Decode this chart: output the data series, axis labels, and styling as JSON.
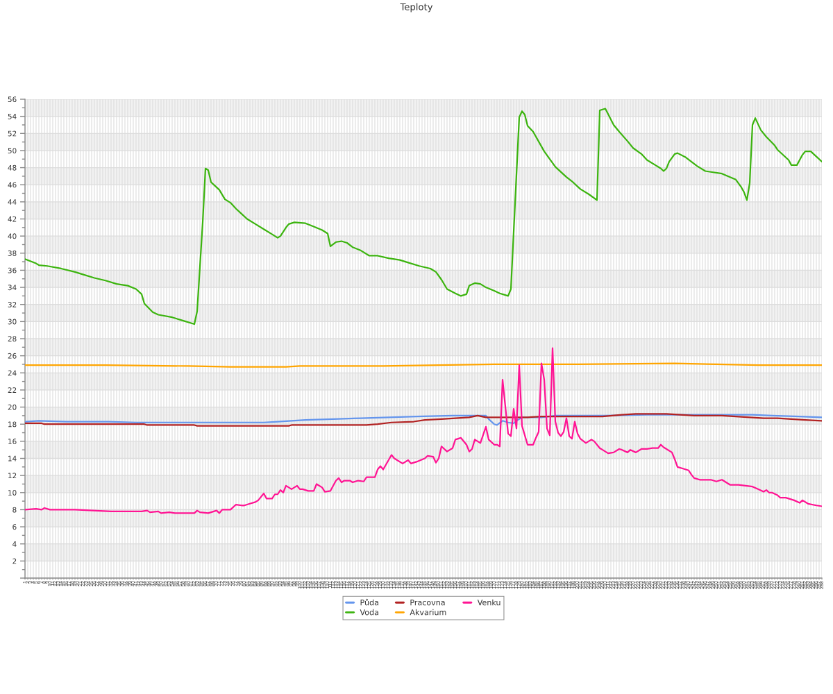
{
  "chart_data": {
    "type": "line",
    "title": "Teploty",
    "xlim": [
      1,
      288
    ],
    "xticks": [
      1,
      2,
      3,
      4,
      5,
      6,
      7,
      8,
      9,
      10,
      11,
      12,
      13,
      14,
      15,
      16,
      17,
      18,
      19,
      20,
      21,
      22,
      23,
      24,
      25,
      26,
      27,
      28,
      29,
      30,
      31,
      32,
      33,
      34,
      35,
      36,
      37,
      38,
      39,
      40,
      41,
      42,
      43,
      44,
      45,
      46,
      47,
      48,
      49,
      50,
      51,
      52,
      53,
      54,
      55,
      56,
      57,
      58,
      59,
      60,
      61,
      62,
      63,
      64,
      65,
      66,
      67,
      68,
      69,
      70,
      71,
      72,
      73,
      74,
      75,
      76,
      77,
      78,
      79,
      80,
      81,
      82,
      83,
      84,
      85,
      86,
      87,
      88,
      89,
      90,
      91,
      92,
      93,
      94,
      95,
      96,
      97,
      98,
      99,
      100,
      101,
      102,
      103,
      104,
      105,
      106,
      107,
      108,
      109,
      110,
      111,
      112,
      113,
      114,
      115,
      116,
      117,
      118,
      119,
      120,
      121,
      122,
      123,
      124,
      125,
      126,
      127,
      128,
      129,
      130,
      131,
      132,
      133,
      134,
      135,
      136,
      137,
      138,
      139,
      140,
      141,
      142,
      143,
      144,
      145,
      146,
      147,
      148,
      149,
      150,
      151,
      152,
      153,
      154,
      155,
      156,
      157,
      158,
      159,
      160,
      161,
      162,
      163,
      164,
      165,
      166,
      167,
      168,
      169,
      170,
      171,
      172,
      173,
      174,
      175,
      176,
      177,
      178,
      179,
      180,
      181,
      182,
      183,
      184,
      185,
      186,
      187,
      188,
      189,
      190,
      191,
      192,
      193,
      194,
      195,
      196,
      197,
      198,
      199,
      200,
      201,
      202,
      203,
      204,
      205,
      206,
      207,
      208,
      209,
      210,
      211,
      212,
      213,
      214,
      215,
      216,
      217,
      218,
      219,
      220,
      221,
      222,
      223,
      224,
      225,
      226,
      227,
      228,
      229,
      230,
      231,
      232,
      233,
      234,
      235,
      236,
      237,
      238,
      239,
      240,
      241,
      242,
      243,
      244,
      245,
      246,
      247,
      248,
      249,
      250,
      251,
      252,
      253,
      254,
      255,
      256,
      257,
      258,
      259,
      260,
      261,
      262,
      263,
      264,
      265,
      266,
      267,
      268,
      269,
      270,
      271,
      272,
      273,
      274,
      275,
      276,
      277,
      278,
      279,
      280,
      281,
      282,
      283,
      284,
      285,
      286,
      287,
      288
    ],
    "ylim": [
      0,
      56
    ],
    "yticks": [
      {
        "value": 0,
        "label": null
      },
      2,
      4,
      6,
      8,
      10,
      12,
      14,
      16,
      18,
      20,
      22,
      24,
      26,
      28,
      30,
      32,
      34,
      36,
      38,
      40,
      42,
      44,
      46,
      48,
      50,
      52,
      54,
      56
    ],
    "grid": true,
    "legend": "bottom",
    "series": [
      {
        "name": "Půda",
        "color": "#6495ed",
        "x": [
          1,
          6,
          16,
          31,
          41,
          66,
          87,
          92,
          102,
          112,
          122,
          132,
          142,
          155,
          160,
          167,
          168,
          170,
          171,
          173,
          175,
          177,
          178,
          180,
          187,
          192,
          210,
          225,
          250,
          263,
          270,
          280,
          288
        ],
        "values": [
          18.3,
          18.4,
          18.3,
          18.3,
          18.2,
          18.2,
          18.2,
          18.3,
          18.5,
          18.6,
          18.7,
          18.8,
          18.9,
          19.0,
          19.0,
          19.0,
          18.6,
          18.0,
          17.9,
          18.4,
          18.2,
          18.1,
          18.4,
          18.8,
          18.8,
          19.0,
          19.0,
          19.1,
          19.1,
          19.1,
          19.0,
          18.9,
          18.8
        ]
      },
      {
        "name": "Voda",
        "color": "#3cb40f",
        "x": [
          1,
          5,
          6,
          9,
          14,
          19,
          22,
          26,
          30,
          34,
          38,
          41,
          43,
          44,
          47,
          49,
          54,
          58,
          62,
          63,
          65,
          66,
          67,
          68,
          70,
          71,
          73,
          75,
          77,
          79,
          81,
          84,
          87,
          90,
          92,
          93,
          95,
          96,
          98,
          102,
          105,
          108,
          110,
          111,
          113,
          115,
          117,
          119,
          122,
          125,
          128,
          132,
          136,
          139,
          143,
          147,
          149,
          151,
          153,
          156,
          158,
          160,
          161,
          163,
          165,
          167,
          170,
          172,
          175,
          176,
          179,
          180,
          181,
          182,
          184,
          188,
          192,
          196,
          198,
          201,
          204,
          207,
          208,
          210,
          213,
          215,
          218,
          220,
          223,
          225,
          228,
          230,
          231,
          232,
          233,
          235,
          236,
          239,
          243,
          246,
          248,
          252,
          257,
          259,
          260,
          261,
          262,
          263,
          264,
          266,
          268,
          271,
          272,
          276,
          277,
          279,
          280,
          281,
          282,
          284,
          285,
          288
        ],
        "values": [
          37.3,
          36.8,
          36.6,
          36.5,
          36.2,
          35.8,
          35.5,
          35.1,
          34.8,
          34.4,
          34.2,
          33.8,
          33.2,
          32.1,
          31.1,
          30.8,
          30.5,
          30.1,
          29.7,
          31.2,
          41.6,
          47.9,
          47.7,
          46.3,
          45.7,
          45.4,
          44.3,
          43.9,
          43.2,
          42.6,
          42.0,
          41.4,
          40.8,
          40.2,
          39.8,
          40.0,
          41.0,
          41.4,
          41.6,
          41.5,
          41.1,
          40.7,
          40.3,
          38.8,
          39.3,
          39.4,
          39.2,
          38.7,
          38.3,
          37.7,
          37.7,
          37.4,
          37.2,
          36.9,
          36.5,
          36.2,
          35.8,
          34.9,
          33.8,
          33.3,
          33.0,
          33.2,
          34.2,
          34.5,
          34.4,
          34.0,
          33.6,
          33.3,
          33.0,
          33.8,
          53.9,
          54.6,
          54.2,
          52.9,
          52.2,
          49.9,
          48.1,
          46.9,
          46.4,
          45.5,
          44.9,
          44.2,
          54.7,
          54.9,
          53.0,
          52.2,
          51.1,
          50.3,
          49.6,
          48.9,
          48.3,
          47.9,
          47.6,
          47.9,
          48.7,
          49.6,
          49.7,
          49.2,
          48.2,
          47.6,
          47.5,
          47.3,
          46.6,
          45.7,
          45.1,
          44.2,
          46.2,
          53.0,
          53.8,
          52.4,
          51.6,
          50.6,
          50.1,
          48.9,
          48.3,
          48.3,
          48.9,
          49.5,
          49.9,
          49.9,
          49.6,
          48.7
        ]
      },
      {
        "name": "Pracovna",
        "color": "#b22222",
        "x": [
          1,
          7,
          8,
          44,
          45,
          62,
          63,
          96,
          97,
          124,
          128,
          133,
          141,
          145,
          151,
          156,
          161,
          164,
          167,
          177,
          182,
          187,
          209,
          216,
          221,
          232,
          237,
          242,
          252,
          257,
          262,
          267,
          272,
          277,
          282,
          288
        ],
        "values": [
          18.1,
          18.1,
          18.0,
          18.0,
          17.9,
          17.9,
          17.8,
          17.8,
          17.9,
          17.9,
          18.0,
          18.2,
          18.3,
          18.5,
          18.6,
          18.7,
          18.8,
          19.0,
          18.8,
          18.8,
          18.8,
          18.9,
          18.9,
          19.1,
          19.2,
          19.2,
          19.1,
          19.0,
          19.0,
          18.9,
          18.8,
          18.7,
          18.7,
          18.6,
          18.5,
          18.4
        ]
      },
      {
        "name": "Akvarium",
        "color": "#ffa500",
        "x": [
          1,
          30,
          60,
          75,
          95,
          100,
          130,
          150,
          170,
          200,
          235,
          250,
          265,
          288
        ],
        "values": [
          24.9,
          24.9,
          24.8,
          24.7,
          24.7,
          24.8,
          24.8,
          24.9,
          25.0,
          25.0,
          25.1,
          25.0,
          24.9,
          24.9
        ]
      },
      {
        "name": "Venku",
        "color": "#ff1493",
        "x": [
          1,
          5,
          7,
          8,
          10,
          19,
          32,
          43,
          45,
          46,
          49,
          50,
          53,
          55,
          62,
          63,
          64,
          67,
          70,
          71,
          72,
          75,
          77,
          79,
          80,
          82,
          84,
          85,
          87,
          88,
          90,
          91,
          92,
          93,
          94,
          95,
          97,
          99,
          100,
          101,
          103,
          105,
          106,
          108,
          109,
          111,
          113,
          114,
          115,
          116,
          118,
          119,
          121,
          123,
          124,
          127,
          128,
          129,
          130,
          133,
          134,
          137,
          139,
          140,
          142,
          145,
          146,
          148,
          149,
          150,
          151,
          153,
          155,
          156,
          158,
          160,
          161,
          162,
          163,
          165,
          167,
          168,
          170,
          171,
          172,
          173,
          175,
          176,
          177,
          178,
          179,
          180,
          182,
          184,
          185,
          186,
          187,
          188,
          189,
          190,
          191,
          192,
          193,
          194,
          195,
          196,
          197,
          198,
          199,
          200,
          201,
          203,
          205,
          206,
          208,
          209,
          211,
          213,
          215,
          216,
          218,
          219,
          221,
          223,
          225,
          227,
          229,
          230,
          231,
          234,
          235,
          236,
          238,
          240,
          241,
          242,
          244,
          248,
          250,
          252,
          253,
          255,
          258,
          263,
          265,
          267,
          268,
          269,
          270,
          272,
          273,
          275,
          278,
          280,
          281,
          283,
          286,
          288
        ],
        "values": [
          8.0,
          8.1,
          8.0,
          8.2,
          8.0,
          8.0,
          7.8,
          7.8,
          7.9,
          7.7,
          7.8,
          7.6,
          7.7,
          7.6,
          7.6,
          7.9,
          7.7,
          7.6,
          7.9,
          7.6,
          8.0,
          8.0,
          8.6,
          8.5,
          8.5,
          8.7,
          8.9,
          9.1,
          9.9,
          9.3,
          9.3,
          9.8,
          9.8,
          10.3,
          10.0,
          10.8,
          10.4,
          10.8,
          10.4,
          10.4,
          10.2,
          10.2,
          11.0,
          10.6,
          10.1,
          10.2,
          11.4,
          11.7,
          11.2,
          11.4,
          11.4,
          11.2,
          11.4,
          11.3,
          11.8,
          11.8,
          12.7,
          13.1,
          12.7,
          14.4,
          14.0,
          13.4,
          13.8,
          13.4,
          13.6,
          14.0,
          14.3,
          14.2,
          13.5,
          14.0,
          15.4,
          14.8,
          15.2,
          16.2,
          16.4,
          15.6,
          14.8,
          15.1,
          16.2,
          15.8,
          17.7,
          16.2,
          15.6,
          15.6,
          15.4,
          23.2,
          16.9,
          16.6,
          19.8,
          17.5,
          24.9,
          17.8,
          15.6,
          15.6,
          16.4,
          17.1,
          25.1,
          23.2,
          17.5,
          16.7,
          26.9,
          18.3,
          17.0,
          16.6,
          17.1,
          18.7,
          16.6,
          16.3,
          18.3,
          16.9,
          16.3,
          15.8,
          16.2,
          16.0,
          15.2,
          15.0,
          14.6,
          14.7,
          15.1,
          15.0,
          14.7,
          15.0,
          14.7,
          15.1,
          15.1,
          15.2,
          15.2,
          15.6,
          15.3,
          14.7,
          13.9,
          13.0,
          12.8,
          12.6,
          12.1,
          11.7,
          11.5,
          11.5,
          11.3,
          11.5,
          11.3,
          10.9,
          10.9,
          10.7,
          10.4,
          10.1,
          10.3,
          10.0,
          10.0,
          9.7,
          9.4,
          9.4,
          9.1,
          8.8,
          9.1,
          8.7,
          8.5,
          8.4
        ]
      }
    ]
  }
}
